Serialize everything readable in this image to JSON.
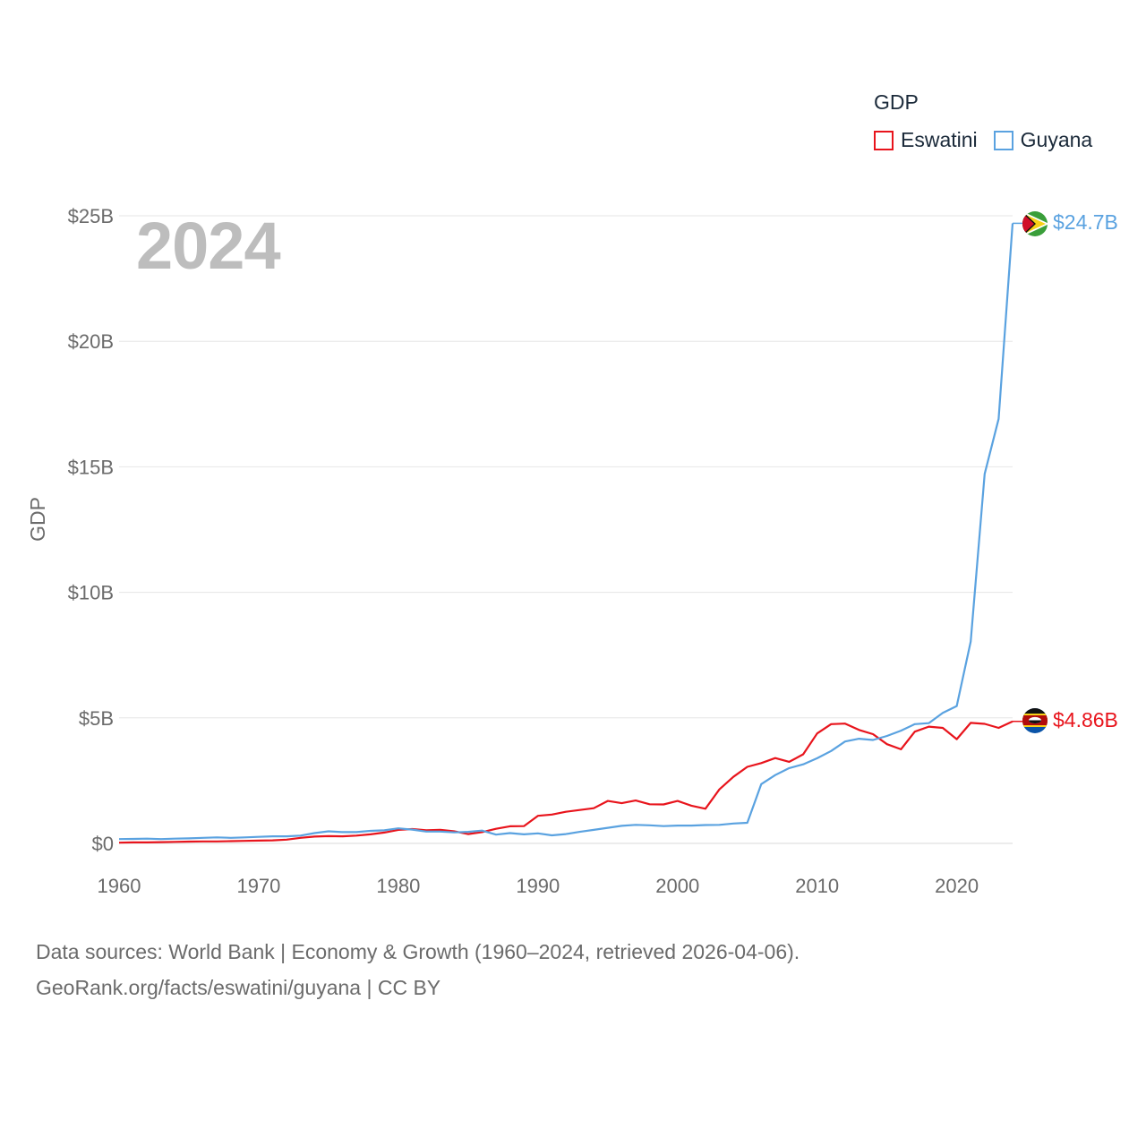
{
  "legend": {
    "title": "GDP",
    "items": [
      {
        "label": "Eswatini",
        "color": "#e8141c"
      },
      {
        "label": "Guyana",
        "color": "#5aa2e0"
      }
    ]
  },
  "year_watermark": "2024",
  "footer": {
    "line1": "Data sources: World Bank | Economy & Growth (1960–2024, retrieved 2026-04-06).",
    "line2": "GeoRank.org/facts/eswatini/guyana | CC BY"
  },
  "chart_data": {
    "type": "line",
    "title": "GDP",
    "xlabel": "",
    "ylabel": "GDP",
    "xlim": [
      1960,
      2024
    ],
    "ylim": [
      0,
      25
    ],
    "x_ticks": [
      1960,
      1970,
      1980,
      1990,
      2000,
      2010,
      2020
    ],
    "y_ticks": [
      {
        "value": 0,
        "label": "$0"
      },
      {
        "value": 5,
        "label": "$5B"
      },
      {
        "value": 10,
        "label": "$10B"
      },
      {
        "value": 15,
        "label": "$15B"
      },
      {
        "value": 20,
        "label": "$20B"
      },
      {
        "value": 25,
        "label": "$25B"
      }
    ],
    "grid": true,
    "legend_position": "top-right",
    "x": [
      1960,
      1961,
      1962,
      1963,
      1964,
      1965,
      1966,
      1967,
      1968,
      1969,
      1970,
      1971,
      1972,
      1973,
      1974,
      1975,
      1976,
      1977,
      1978,
      1979,
      1980,
      1981,
      1982,
      1983,
      1984,
      1985,
      1986,
      1987,
      1988,
      1989,
      1990,
      1991,
      1992,
      1993,
      1994,
      1995,
      1996,
      1997,
      1998,
      1999,
      2000,
      2001,
      2002,
      2003,
      2004,
      2005,
      2006,
      2007,
      2008,
      2009,
      2010,
      2011,
      2012,
      2013,
      2014,
      2015,
      2016,
      2017,
      2018,
      2019,
      2020,
      2021,
      2022,
      2023,
      2024
    ],
    "series": [
      {
        "name": "Eswatini",
        "color": "#e8141c",
        "end_label": "$4.86B",
        "values": [
          0.03,
          0.04,
          0.04,
          0.05,
          0.06,
          0.07,
          0.08,
          0.08,
          0.09,
          0.1,
          0.11,
          0.12,
          0.15,
          0.22,
          0.27,
          0.29,
          0.28,
          0.31,
          0.36,
          0.43,
          0.54,
          0.57,
          0.52,
          0.54,
          0.48,
          0.37,
          0.45,
          0.58,
          0.68,
          0.69,
          1.1,
          1.15,
          1.26,
          1.33,
          1.4,
          1.69,
          1.6,
          1.71,
          1.56,
          1.55,
          1.69,
          1.5,
          1.38,
          2.15,
          2.65,
          3.05,
          3.2,
          3.4,
          3.25,
          3.55,
          4.38,
          4.75,
          4.77,
          4.52,
          4.35,
          3.95,
          3.75,
          4.45,
          4.65,
          4.6,
          4.15,
          4.8,
          4.76,
          4.6,
          4.86
        ]
      },
      {
        "name": "Guyana",
        "color": "#5aa2e0",
        "end_label": "$24.7B",
        "values": [
          0.17,
          0.18,
          0.19,
          0.17,
          0.19,
          0.2,
          0.22,
          0.24,
          0.22,
          0.24,
          0.26,
          0.28,
          0.28,
          0.31,
          0.41,
          0.48,
          0.45,
          0.45,
          0.5,
          0.52,
          0.6,
          0.55,
          0.47,
          0.47,
          0.44,
          0.46,
          0.51,
          0.35,
          0.41,
          0.36,
          0.4,
          0.32,
          0.37,
          0.46,
          0.54,
          0.62,
          0.7,
          0.74,
          0.72,
          0.69,
          0.71,
          0.71,
          0.73,
          0.74,
          0.79,
          0.82,
          2.36,
          2.72,
          3.0,
          3.15,
          3.39,
          3.68,
          4.06,
          4.17,
          4.12,
          4.28,
          4.49,
          4.75,
          4.79,
          5.2,
          5.47,
          8.04,
          14.72,
          16.91,
          24.7
        ]
      }
    ]
  }
}
